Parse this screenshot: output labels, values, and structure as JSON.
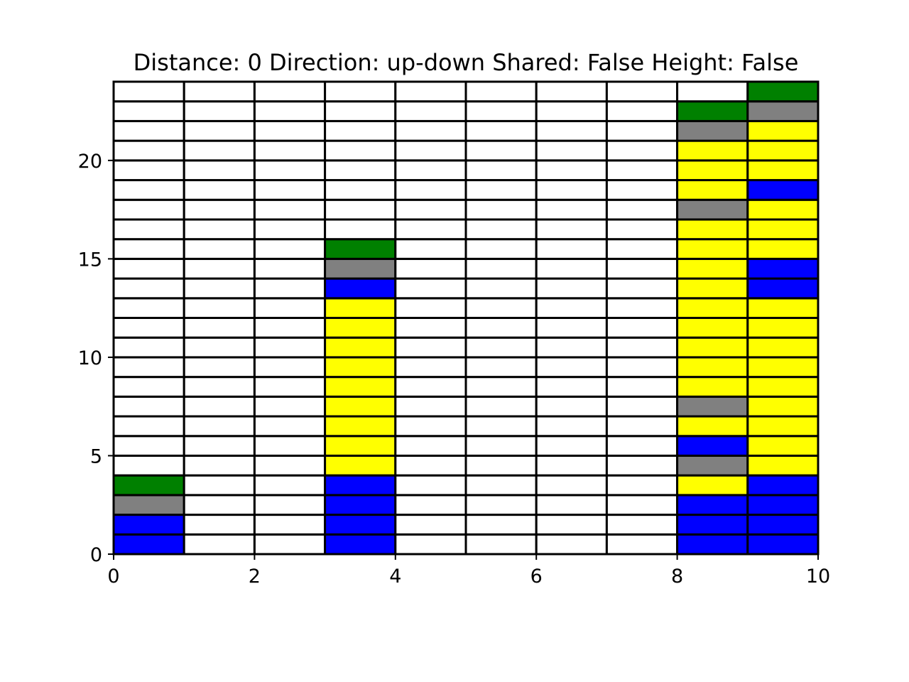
{
  "chart_data": {
    "type": "heatmap",
    "title": "Distance: 0 Direction: up-down Shared: False Height: False",
    "xlabel": "",
    "ylabel": "",
    "xlim": [
      0,
      10
    ],
    "ylim": [
      0,
      24
    ],
    "x_ticks": [
      "0",
      "2",
      "4",
      "6",
      "8",
      "10"
    ],
    "y_ticks": [
      "0",
      "5",
      "10",
      "15",
      "20"
    ],
    "grid": "cell borders",
    "legend": "none",
    "colors": {
      "blue": "#0000ff",
      "gray": "#808080",
      "green": "#008000",
      "yellow": "#ffff00",
      "empty": "#ffffff",
      "edge": "#000000"
    },
    "columns": [
      {
        "x": 0,
        "cells": [
          "blue",
          "blue",
          "gray",
          "green"
        ]
      },
      {
        "x": 1,
        "cells": []
      },
      {
        "x": 2,
        "cells": []
      },
      {
        "x": 3,
        "cells": [
          "blue",
          "blue",
          "blue",
          "blue",
          "yellow",
          "yellow",
          "yellow",
          "yellow",
          "yellow",
          "yellow",
          "yellow",
          "yellow",
          "yellow",
          "blue",
          "gray",
          "green"
        ]
      },
      {
        "x": 4,
        "cells": []
      },
      {
        "x": 5,
        "cells": []
      },
      {
        "x": 6,
        "cells": []
      },
      {
        "x": 7,
        "cells": []
      },
      {
        "x": 8,
        "cells": [
          "blue",
          "blue",
          "blue",
          "yellow",
          "gray",
          "blue",
          "yellow",
          "gray",
          "yellow",
          "yellow",
          "yellow",
          "yellow",
          "yellow",
          "yellow",
          "yellow",
          "yellow",
          "yellow",
          "gray",
          "yellow",
          "yellow",
          "yellow",
          "gray",
          "green"
        ]
      },
      {
        "x": 9,
        "cells": [
          "blue",
          "blue",
          "blue",
          "blue",
          "yellow",
          "yellow",
          "yellow",
          "yellow",
          "yellow",
          "yellow",
          "yellow",
          "yellow",
          "yellow",
          "blue",
          "blue",
          "yellow",
          "yellow",
          "yellow",
          "blue",
          "yellow",
          "yellow",
          "yellow",
          "gray",
          "green"
        ]
      }
    ]
  }
}
